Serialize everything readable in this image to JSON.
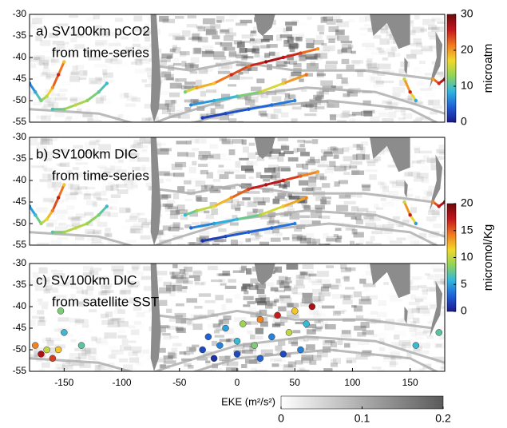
{
  "chart_data": [
    {
      "type": "map-track",
      "title": [
        "a) SV100km pCO2",
        "from time-series"
      ],
      "xlim": [
        -180,
        180
      ],
      "ylim": [
        -55,
        -30
      ],
      "yticks": [
        -30,
        -35,
        -40,
        -45,
        -50,
        -55
      ],
      "colorbar": {
        "label": "microatm",
        "lim": [
          0,
          30
        ],
        "ticks": [
          0,
          10,
          20,
          30
        ],
        "colors": [
          "#1a1a8c",
          "#1f5fd6",
          "#2fb6e0",
          "#8fd35a",
          "#f2d82a",
          "#f07a1e",
          "#c4161c",
          "#6e0a0a"
        ]
      },
      "tracks": [
        {
          "x": [
            -180,
            -175,
            -170,
            -165,
            -160,
            -155,
            -150
          ],
          "y": [
            -46,
            -48,
            -50,
            -49,
            -47,
            -44,
            -41
          ],
          "values": [
            5,
            8,
            12,
            15,
            20,
            25,
            18
          ]
        },
        {
          "x": [
            -160,
            -150,
            -140,
            -130,
            -120,
            -113
          ],
          "y": [
            -52,
            -52,
            -51,
            -50,
            -48,
            -46
          ],
          "values": [
            10,
            12,
            15,
            13,
            11,
            9
          ]
        },
        {
          "x": [
            -45,
            -35,
            -20,
            -5,
            10,
            25,
            40,
            55,
            70
          ],
          "y": [
            -48,
            -47,
            -46,
            -44,
            -42,
            -41,
            -40,
            -39,
            -38
          ],
          "values": [
            12,
            20,
            18,
            25,
            22,
            28,
            26,
            24,
            20
          ]
        },
        {
          "x": [
            -40,
            -20,
            0,
            20,
            40,
            60
          ],
          "y": [
            -51,
            -50,
            -49,
            -48,
            -46,
            -44
          ],
          "values": [
            6,
            8,
            10,
            14,
            18,
            22
          ]
        },
        {
          "x": [
            -30,
            -10,
            10,
            30,
            50
          ],
          "y": [
            -54,
            -53,
            -52,
            -51,
            -50
          ],
          "values": [
            2,
            3,
            4,
            5,
            6
          ]
        },
        {
          "x": [
            145,
            150,
            155
          ],
          "y": [
            -45,
            -48,
            -50
          ],
          "values": [
            15,
            25,
            8
          ]
        },
        {
          "x": [
            170,
            175,
            180
          ],
          "y": [
            -45,
            -46,
            -45
          ],
          "values": [
            20,
            25,
            28
          ]
        }
      ]
    },
    {
      "type": "map-track",
      "title": [
        "b) SV100km DIC",
        "from time-series"
      ],
      "xlim": [
        -180,
        180
      ],
      "ylim": [
        -55,
        -30
      ],
      "yticks": [
        -30,
        -35,
        -40,
        -45,
        -50,
        -55
      ],
      "colorbar": {
        "label": "micromol/Kg",
        "lim": [
          0,
          20
        ],
        "ticks": [
          0,
          5,
          10,
          15,
          20
        ],
        "colors": [
          "#1a1a8c",
          "#1f5fd6",
          "#2fb6e0",
          "#8fd35a",
          "#f2d82a",
          "#f07a1e",
          "#c4161c",
          "#6e0a0a"
        ]
      },
      "tracks": [
        {
          "x": [
            -180,
            -175,
            -170,
            -165,
            -160,
            -155,
            -150
          ],
          "y": [
            -46,
            -48,
            -50,
            -49,
            -47,
            -44,
            -41
          ],
          "values": [
            4,
            6,
            9,
            11,
            14,
            17,
            12
          ]
        },
        {
          "x": [
            -160,
            -150,
            -140,
            -130,
            -120,
            -113
          ],
          "y": [
            -52,
            -52,
            -51,
            -50,
            -48,
            -46
          ],
          "values": [
            7,
            9,
            10,
            9,
            8,
            6
          ]
        },
        {
          "x": [
            -45,
            -35,
            -20,
            -5,
            10,
            25,
            40,
            55,
            70
          ],
          "y": [
            -48,
            -47,
            -46,
            -44,
            -42,
            -41,
            -40,
            -39,
            -38
          ],
          "values": [
            6,
            9,
            11,
            14,
            16,
            18,
            17,
            15,
            13
          ]
        },
        {
          "x": [
            -40,
            -20,
            0,
            20,
            40,
            60
          ],
          "y": [
            -51,
            -50,
            -49,
            -48,
            -46,
            -44
          ],
          "values": [
            3,
            5,
            6,
            9,
            12,
            14
          ]
        },
        {
          "x": [
            -30,
            -10,
            10,
            30,
            50
          ],
          "y": [
            -54,
            -53,
            -52,
            -51,
            -50
          ],
          "values": [
            1,
            2,
            3,
            3,
            4
          ]
        },
        {
          "x": [
            145,
            150,
            155
          ],
          "y": [
            -45,
            -48,
            -50
          ],
          "values": [
            10,
            17,
            5
          ]
        },
        {
          "x": [
            170,
            175,
            180
          ],
          "y": [
            -45,
            -46,
            -45
          ],
          "values": [
            14,
            17,
            19
          ]
        }
      ]
    },
    {
      "type": "map-dots",
      "title": [
        "c) SV100km DIC",
        "from satellite SST"
      ],
      "xlim": [
        -180,
        180
      ],
      "ylim": [
        -55,
        -30
      ],
      "yticks": [
        -30,
        -35,
        -40,
        -45,
        -50,
        -55
      ],
      "xticks": [
        -150,
        -100,
        -50,
        0,
        50,
        100,
        150
      ],
      "eke_colorbar": {
        "label": "EKE (m²/s²)",
        "lim": [
          0,
          0.2
        ],
        "ticks": [
          0,
          0.1,
          0.2
        ],
        "colors": [
          "#ffffff",
          "#5a5a5a"
        ]
      },
      "tracks": [
        {
          "x": [
            -175,
            -170,
            -165,
            -160,
            -155
          ],
          "y": [
            -49,
            -51,
            -50,
            -52,
            -50
          ],
          "values": [
            14,
            18,
            10,
            16,
            12
          ]
        },
        {
          "x": [
            -153,
            -150,
            -135
          ],
          "y": [
            -41,
            -46,
            -49
          ],
          "values": [
            8,
            6,
            7
          ]
        },
        {
          "x": [
            -25,
            -10,
            5,
            20,
            35,
            50,
            65
          ],
          "y": [
            -47,
            -45,
            -44,
            -43,
            -42,
            -41,
            -40
          ],
          "values": [
            3,
            5,
            9,
            14,
            17,
            12,
            18
          ]
        },
        {
          "x": [
            -30,
            -15,
            0,
            15,
            30,
            45,
            60
          ],
          "y": [
            -50,
            -49,
            -48,
            -49,
            -47,
            -46,
            -44
          ],
          "values": [
            2,
            4,
            6,
            8,
            4,
            10,
            6
          ]
        },
        {
          "x": [
            -20,
            0,
            20,
            40,
            55
          ],
          "y": [
            -52,
            -51,
            -52,
            -51,
            -50
          ],
          "values": [
            1,
            2,
            3,
            2,
            4
          ]
        },
        {
          "x": [
            155,
            175
          ],
          "y": [
            -49,
            -46
          ],
          "values": [
            6,
            7
          ]
        }
      ]
    }
  ]
}
